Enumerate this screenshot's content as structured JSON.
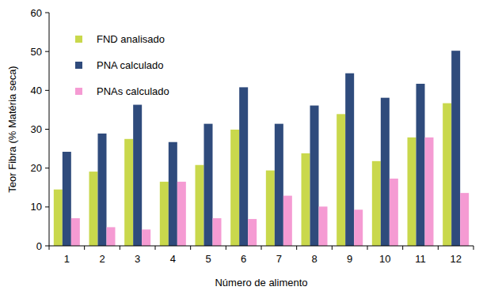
{
  "chart_data": {
    "type": "bar",
    "x_label": "Número de alimento",
    "y_label": "Teor Fibra (% Matéria seca)",
    "categories": [
      "1",
      "2",
      "3",
      "4",
      "5",
      "6",
      "7",
      "8",
      "9",
      "10",
      "11",
      "12"
    ],
    "series": [
      {
        "name": "FND analisado",
        "color": "#c9d84c",
        "values": [
          14.5,
          19.1,
          27.5,
          16.5,
          20.8,
          29.9,
          19.4,
          23.8,
          33.9,
          21.8,
          27.9,
          36.7
        ]
      },
      {
        "name": "PNA calculado",
        "color": "#2f4b7c",
        "values": [
          24.2,
          28.9,
          36.3,
          26.7,
          31.4,
          40.8,
          31.4,
          36.1,
          44.4,
          38.1,
          41.7,
          50.2
        ]
      },
      {
        "name": "PNAs calculado",
        "color": "#f59bd3",
        "values": [
          7.1,
          4.8,
          4.2,
          16.5,
          7.1,
          6.9,
          12.9,
          10.1,
          9.3,
          17.3,
          27.9,
          13.6
        ]
      }
    ],
    "ylim": [
      0,
      60
    ],
    "yticks": [
      0,
      10,
      20,
      30,
      40,
      50,
      60
    ],
    "grid": false,
    "legend": "upper left"
  }
}
